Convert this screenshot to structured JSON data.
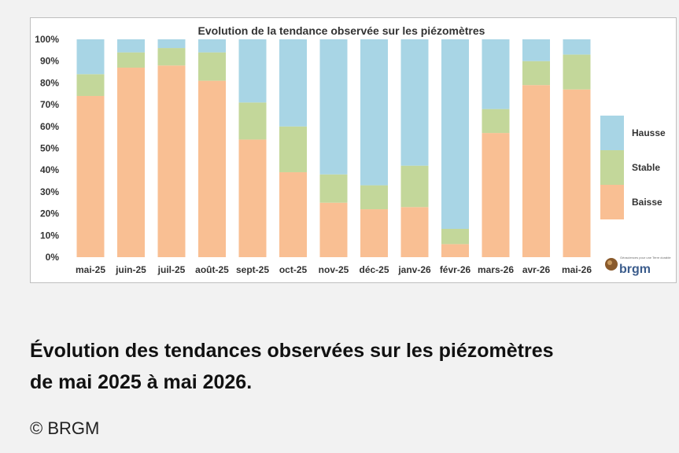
{
  "chart_data": {
    "type": "bar",
    "stacked": true,
    "title": "Evolution de la tendance observée sur les piézomètres",
    "categories": [
      "mai-25",
      "juin-25",
      "juil-25",
      "août-25",
      "sept-25",
      "oct-25",
      "nov-25",
      "déc-25",
      "janv-26",
      "févr-26",
      "mars-26",
      "avr-26",
      "mai-26"
    ],
    "series": [
      {
        "name": "Baisse",
        "color": "#f9bf93",
        "values": [
          74,
          87,
          88,
          81,
          54,
          39,
          25,
          22,
          23,
          6,
          57,
          79,
          77
        ]
      },
      {
        "name": "Stable",
        "color": "#c3d79a",
        "values": [
          10,
          7,
          8,
          13,
          17,
          21,
          13,
          11,
          19,
          7,
          11,
          11,
          16
        ]
      },
      {
        "name": "Hausse",
        "color": "#a8d5e5",
        "values": [
          16,
          6,
          4,
          6,
          29,
          40,
          62,
          67,
          58,
          87,
          32,
          10,
          7
        ]
      }
    ],
    "y_ticks": [
      "0%",
      "10%",
      "20%",
      "30%",
      "40%",
      "50%",
      "60%",
      "70%",
      "80%",
      "90%",
      "100%"
    ],
    "ylim": [
      0,
      100
    ],
    "grid": false,
    "legend_position": "right"
  },
  "logo": {
    "text": "brgm",
    "small_text": "Géosciences pour une Terre durable"
  },
  "caption": {
    "line1": "Évolution des tendances observées sur les piézomètres",
    "line2": "de mai 2025 à mai 2026."
  },
  "credit": "© BRGM"
}
